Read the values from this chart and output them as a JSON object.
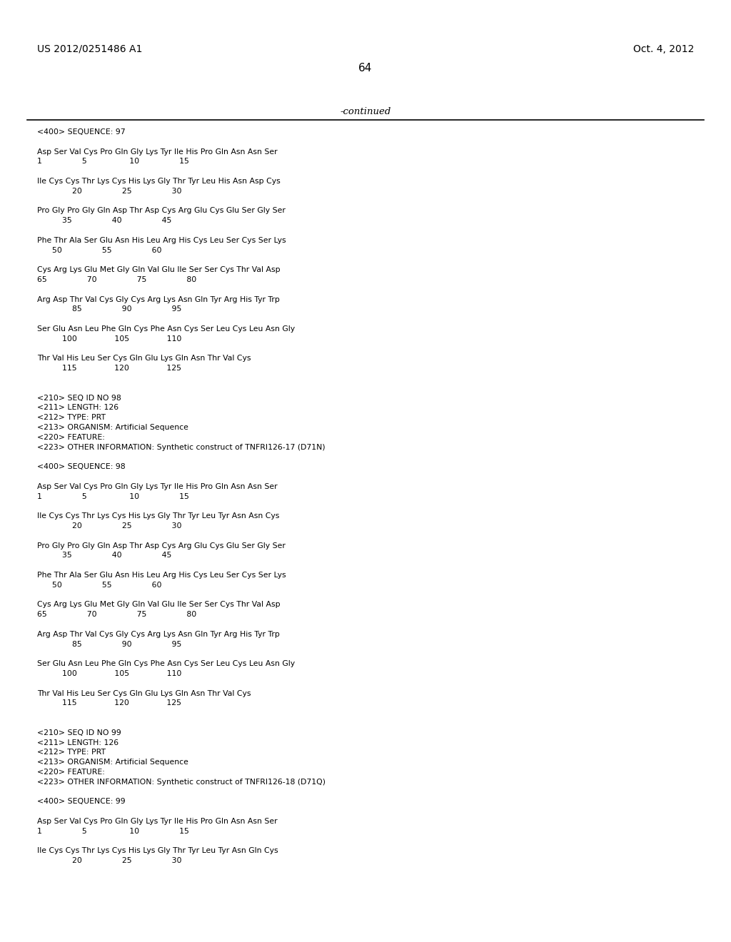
{
  "header_left": "US 2012/0251486 A1",
  "header_right": "Oct. 4, 2012",
  "page_number": "64",
  "continued_text": "-continued",
  "background_color": "#ffffff",
  "text_color": "#000000",
  "lines": [
    "<400> SEQUENCE: 97",
    "",
    "Asp Ser Val Cys Pro Gln Gly Lys Tyr Ile His Pro Gln Asn Asn Ser",
    "1                5                 10                15",
    "",
    "Ile Cys Cys Thr Lys Cys His Lys Gly Thr Tyr Leu His Asn Asp Cys",
    "              20                25                30",
    "",
    "Pro Gly Pro Gly Gln Asp Thr Asp Cys Arg Glu Cys Glu Ser Gly Ser",
    "          35                40                45",
    "",
    "Phe Thr Ala Ser Glu Asn His Leu Arg His Cys Leu Ser Cys Ser Lys",
    "      50                55                60",
    "",
    "Cys Arg Lys Glu Met Gly Gln Val Glu Ile Ser Ser Cys Thr Val Asp",
    "65                70                75                80",
    "",
    "Arg Asp Thr Val Cys Gly Cys Arg Lys Asn Gln Tyr Arg His Tyr Trp",
    "              85                90                95",
    "",
    "Ser Glu Asn Leu Phe Gln Cys Phe Asn Cys Ser Leu Cys Leu Asn Gly",
    "          100               105               110",
    "",
    "Thr Val His Leu Ser Cys Gln Glu Lys Gln Asn Thr Val Cys",
    "          115               120               125",
    "",
    "",
    "<210> SEQ ID NO 98",
    "<211> LENGTH: 126",
    "<212> TYPE: PRT",
    "<213> ORGANISM: Artificial Sequence",
    "<220> FEATURE:",
    "<223> OTHER INFORMATION: Synthetic construct of TNFRI126-17 (D71N)",
    "",
    "<400> SEQUENCE: 98",
    "",
    "Asp Ser Val Cys Pro Gln Gly Lys Tyr Ile His Pro Gln Asn Asn Ser",
    "1                5                 10                15",
    "",
    "Ile Cys Cys Thr Lys Cys His Lys Gly Thr Tyr Leu Tyr Asn Asn Cys",
    "              20                25                30",
    "",
    "Pro Gly Pro Gly Gln Asp Thr Asp Cys Arg Glu Cys Glu Ser Gly Ser",
    "          35                40                45",
    "",
    "Phe Thr Ala Ser Glu Asn His Leu Arg His Cys Leu Ser Cys Ser Lys",
    "      50                55                60",
    "",
    "Cys Arg Lys Glu Met Gly Gln Val Glu Ile Ser Ser Cys Thr Val Asp",
    "65                70                75                80",
    "",
    "Arg Asp Thr Val Cys Gly Cys Arg Lys Asn Gln Tyr Arg His Tyr Trp",
    "              85                90                95",
    "",
    "Ser Glu Asn Leu Phe Gln Cys Phe Asn Cys Ser Leu Cys Leu Asn Gly",
    "          100               105               110",
    "",
    "Thr Val His Leu Ser Cys Gln Glu Lys Gln Asn Thr Val Cys",
    "          115               120               125",
    "",
    "",
    "<210> SEQ ID NO 99",
    "<211> LENGTH: 126",
    "<212> TYPE: PRT",
    "<213> ORGANISM: Artificial Sequence",
    "<220> FEATURE:",
    "<223> OTHER INFORMATION: Synthetic construct of TNFRI126-18 (D71Q)",
    "",
    "<400> SEQUENCE: 99",
    "",
    "Asp Ser Val Cys Pro Gln Gly Lys Tyr Ile His Pro Gln Asn Asn Ser",
    "1                5                 10                15",
    "",
    "Ile Cys Cys Thr Lys Cys His Lys Gly Thr Tyr Leu Tyr Asn Gln Cys",
    "              20                25                30"
  ]
}
